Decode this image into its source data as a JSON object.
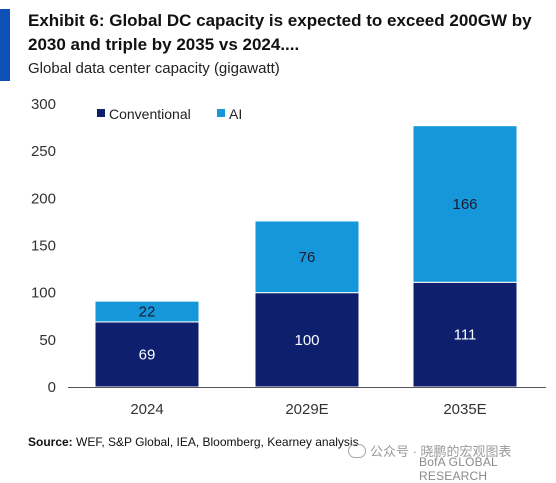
{
  "header": {
    "title": "Exhibit 6: Global DC capacity is expected to exceed 200GW by 2030 and triple by 2035 vs 2024....",
    "subtitle": "Global data center capacity (gigawatt)",
    "accent_color": "#0f4fb8"
  },
  "footer": {
    "source_prefix": "Source:",
    "source_text": " WEF, S&P Global, IEA, Bloomberg, Kearney analysis",
    "watermark": "公众号 · 晓鹏的宏观图表",
    "brand": "BofA GLOBAL RESEARCH"
  },
  "chart_data": {
    "type": "bar",
    "stacked": true,
    "categories": [
      "2024",
      "2029E",
      "2035E"
    ],
    "series": [
      {
        "name": "Conventional",
        "values": [
          69,
          100,
          111
        ],
        "color": "#0e1f6e"
      },
      {
        "name": "AI",
        "values": [
          22,
          76,
          166
        ],
        "color": "#1597d9"
      }
    ],
    "yticks": [
      "0",
      "50",
      "100",
      "150",
      "200",
      "250",
      "300"
    ],
    "ylim": [
      0,
      300
    ],
    "grid": false,
    "legend_position": "top-left",
    "label_color": "#ffffff",
    "segment_label_color": "#1a1a2e"
  }
}
